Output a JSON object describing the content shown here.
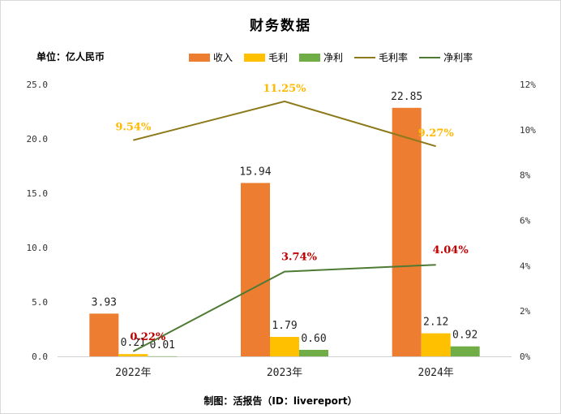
{
  "title": "财务数据",
  "unit_label": "单位：亿人民币",
  "footer": "制图：活报告（ID：livereport）",
  "colors": {
    "revenue": "#ed7d31",
    "gross_profit": "#ffc000",
    "net_profit": "#70ad47",
    "gross_margin": "#8c7a1a",
    "net_margin": "#4e7a34",
    "gross_margin_label": "#ffb900",
    "net_margin_label": "#c00000"
  },
  "legend": [
    {
      "label": "收入",
      "kind": "bar",
      "color_key": "revenue"
    },
    {
      "label": "毛利",
      "kind": "bar",
      "color_key": "gross_profit"
    },
    {
      "label": "净利",
      "kind": "bar",
      "color_key": "net_profit"
    },
    {
      "label": "毛利率",
      "kind": "line",
      "color_key": "gross_margin"
    },
    {
      "label": "净利率",
      "kind": "line",
      "color_key": "net_margin"
    }
  ],
  "chart_data": {
    "type": "bar",
    "categories": [
      "2022年",
      "2023年",
      "2024年"
    ],
    "y_left": {
      "min": 0,
      "max": 25,
      "ticks": [
        "0.0",
        "5.0",
        "10.0",
        "15.0",
        "20.0",
        "25.0"
      ]
    },
    "y_right": {
      "min": 0,
      "max": 12,
      "ticks": [
        "0%",
        "2%",
        "4%",
        "6%",
        "8%",
        "10%",
        "12%"
      ]
    },
    "series": [
      {
        "name": "收入",
        "type": "bar",
        "axis": "left",
        "values": [
          3.93,
          15.94,
          22.85
        ],
        "labels": [
          "3.93",
          "15.94",
          "22.85"
        ]
      },
      {
        "name": "毛利",
        "type": "bar",
        "axis": "left",
        "values": [
          0.21,
          1.79,
          2.12
        ],
        "labels": [
          "0.21",
          "1.79",
          "2.12"
        ]
      },
      {
        "name": "净利",
        "type": "bar",
        "axis": "left",
        "values": [
          0.01,
          0.6,
          0.92
        ],
        "labels": [
          "0.01",
          "0.60",
          "0.92"
        ]
      },
      {
        "name": "毛利率",
        "type": "line",
        "axis": "right",
        "values": [
          9.54,
          11.25,
          9.27
        ],
        "labels": [
          "9.54%",
          "11.25%",
          "9.27%"
        ]
      },
      {
        "name": "净利率",
        "type": "line",
        "axis": "right",
        "values": [
          0.22,
          3.74,
          4.04
        ],
        "labels": [
          "0.22%",
          "3.74%",
          "4.04%"
        ]
      }
    ],
    "grid": false,
    "legend_position": "top"
  }
}
